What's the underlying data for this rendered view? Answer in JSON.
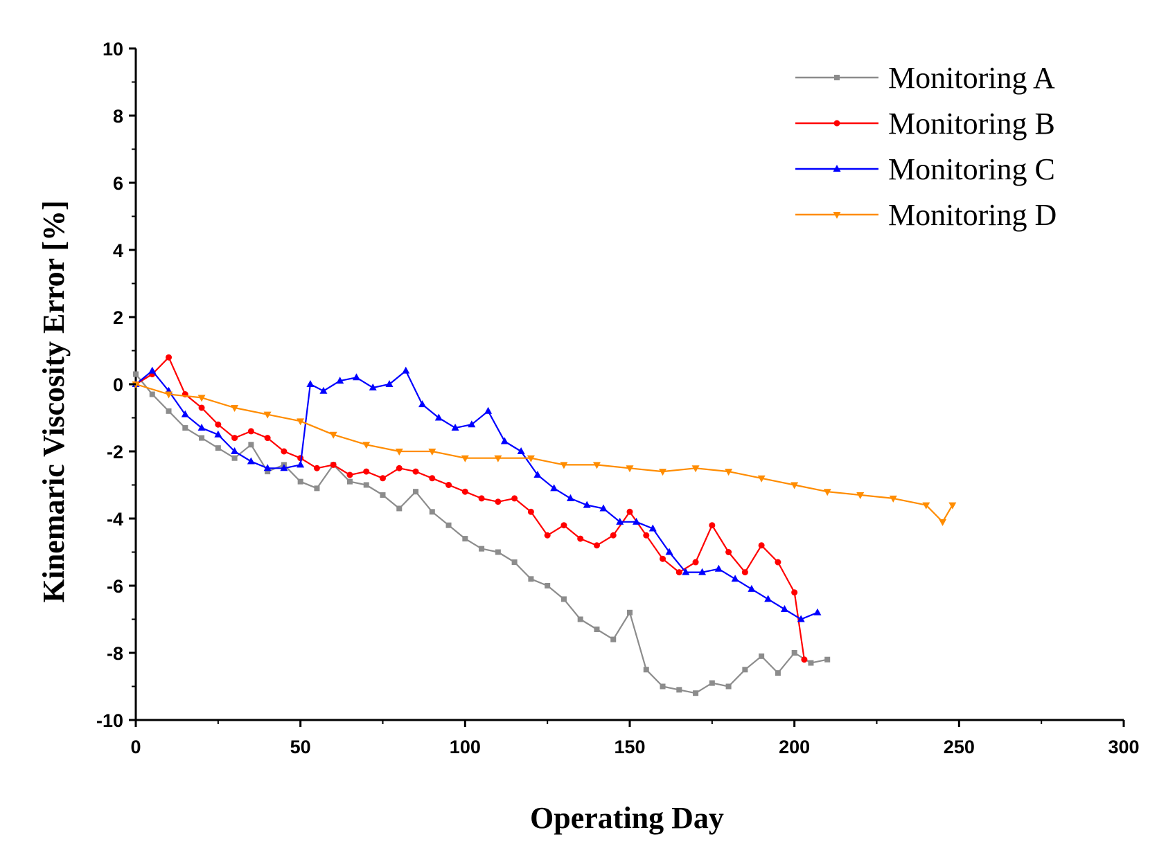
{
  "chart_data": {
    "type": "line",
    "title": "",
    "xlabel": "Operating Day",
    "ylabel": "Kinemaric Viscosity Error [%]",
    "xlim": [
      0,
      300
    ],
    "ylim": [
      -10,
      10
    ],
    "xticks": [
      0,
      50,
      100,
      150,
      200,
      250,
      300
    ],
    "yticks": [
      -10,
      -8,
      -6,
      -4,
      -2,
      0,
      2,
      4,
      6,
      8,
      10
    ],
    "grid": false,
    "legend_position": "top-right",
    "series": [
      {
        "name": "Monitoring A",
        "color": "#8c8c8c",
        "marker": "square",
        "x": [
          0,
          5,
          10,
          15,
          20,
          25,
          30,
          35,
          40,
          45,
          50,
          55,
          60,
          65,
          70,
          75,
          80,
          85,
          90,
          95,
          100,
          105,
          110,
          115,
          120,
          125,
          130,
          135,
          140,
          145,
          150,
          155,
          160,
          165,
          170,
          175,
          180,
          185,
          190,
          195,
          200,
          205,
          210
        ],
        "values": [
          0.3,
          -0.3,
          -0.8,
          -1.3,
          -1.6,
          -1.9,
          -2.2,
          -1.8,
          -2.6,
          -2.4,
          -2.9,
          -3.1,
          -2.4,
          -2.9,
          -3.0,
          -3.3,
          -3.7,
          -3.2,
          -3.8,
          -4.2,
          -4.6,
          -4.9,
          -5.0,
          -5.3,
          -5.8,
          -6.0,
          -6.4,
          -7.0,
          -7.3,
          -7.6,
          -6.8,
          -8.5,
          -9.0,
          -9.1,
          -9.2,
          -8.9,
          -9.0,
          -8.5,
          -8.1,
          -8.6,
          -8.0,
          -8.3,
          -8.2
        ]
      },
      {
        "name": "Monitoring B",
        "color": "#ff0000",
        "marker": "circle",
        "x": [
          0,
          5,
          10,
          15,
          20,
          25,
          30,
          35,
          40,
          45,
          50,
          55,
          60,
          65,
          70,
          75,
          80,
          85,
          90,
          95,
          100,
          105,
          110,
          115,
          120,
          125,
          130,
          135,
          140,
          145,
          150,
          155,
          160,
          165,
          170,
          175,
          180,
          185,
          190,
          195,
          200,
          203
        ],
        "values": [
          0.0,
          0.3,
          0.8,
          -0.3,
          -0.7,
          -1.2,
          -1.6,
          -1.4,
          -1.6,
          -2.0,
          -2.2,
          -2.5,
          -2.4,
          -2.7,
          -2.6,
          -2.8,
          -2.5,
          -2.6,
          -2.8,
          -3.0,
          -3.2,
          -3.4,
          -3.5,
          -3.4,
          -3.8,
          -4.5,
          -4.2,
          -4.6,
          -4.8,
          -4.5,
          -3.8,
          -4.5,
          -5.2,
          -5.6,
          -5.3,
          -4.2,
          -5.0,
          -5.6,
          -4.8,
          -5.3,
          -6.2,
          -8.2
        ]
      },
      {
        "name": "Monitoring C",
        "color": "#0000ff",
        "marker": "triangle-up",
        "x": [
          0,
          5,
          10,
          15,
          20,
          25,
          30,
          35,
          40,
          45,
          50,
          53,
          57,
          62,
          67,
          72,
          77,
          82,
          87,
          92,
          97,
          102,
          107,
          112,
          117,
          122,
          127,
          132,
          137,
          142,
          147,
          152,
          157,
          162,
          167,
          172,
          177,
          182,
          187,
          192,
          197,
          202,
          207
        ],
        "values": [
          0.0,
          0.4,
          -0.2,
          -0.9,
          -1.3,
          -1.5,
          -2.0,
          -2.3,
          -2.5,
          -2.5,
          -2.4,
          0.0,
          -0.2,
          0.1,
          0.2,
          -0.1,
          0.0,
          0.4,
          -0.6,
          -1.0,
          -1.3,
          -1.2,
          -0.8,
          -1.7,
          -2.0,
          -2.7,
          -3.1,
          -3.4,
          -3.6,
          -3.7,
          -4.1,
          -4.1,
          -4.3,
          -5.0,
          -5.6,
          -5.6,
          -5.5,
          -5.8,
          -6.1,
          -6.4,
          -6.7,
          -7.0,
          -6.8
        ]
      },
      {
        "name": "Monitoring D",
        "color": "#ff8c00",
        "marker": "triangle-down",
        "x": [
          0,
          10,
          20,
          30,
          40,
          50,
          60,
          70,
          80,
          90,
          100,
          110,
          120,
          130,
          140,
          150,
          160,
          170,
          180,
          190,
          200,
          210,
          220,
          230,
          240,
          245,
          248
        ],
        "values": [
          0.0,
          -0.3,
          -0.4,
          -0.7,
          -0.9,
          -1.1,
          -1.5,
          -1.8,
          -2.0,
          -2.0,
          -2.2,
          -2.2,
          -2.2,
          -2.4,
          -2.4,
          -2.5,
          -2.6,
          -2.5,
          -2.6,
          -2.8,
          -3.0,
          -3.2,
          -3.3,
          -3.4,
          -3.6,
          -4.1,
          -3.6
        ]
      }
    ]
  }
}
